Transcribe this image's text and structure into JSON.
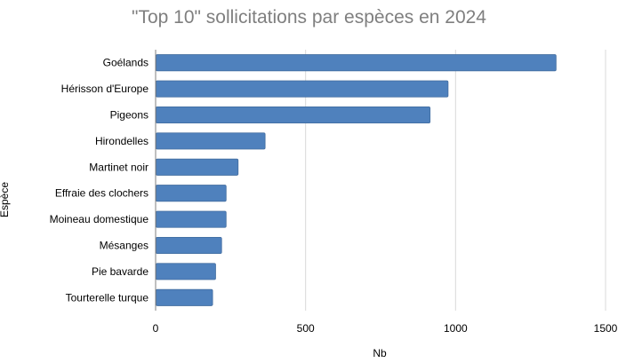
{
  "chart_data": {
    "type": "bar",
    "orientation": "horizontal",
    "title": "\"Top 10\" sollicitations par espèces en 2024",
    "xlabel": "Nb",
    "ylabel": "Espèce",
    "categories": [
      "Goélands",
      "Hérisson d'Europe",
      "Pigeons",
      "Hirondelles",
      "Martinet noir",
      "Effraie des clochers",
      "Moineau domestique",
      "Mésanges",
      "Pie bavarde",
      "Tourterelle turque"
    ],
    "values": [
      1335,
      975,
      915,
      365,
      275,
      235,
      235,
      220,
      200,
      190
    ],
    "xlim": [
      0,
      1500
    ],
    "xticks": [
      "0",
      "500",
      "1000",
      "1500"
    ],
    "grid": "vertical",
    "legend": "none",
    "colors": {
      "bar": "#4f81bd",
      "bar_edge": "#416c9f",
      "grid": "#d9d9d9",
      "axis": "#808080",
      "title": "#7f7f7f"
    }
  }
}
